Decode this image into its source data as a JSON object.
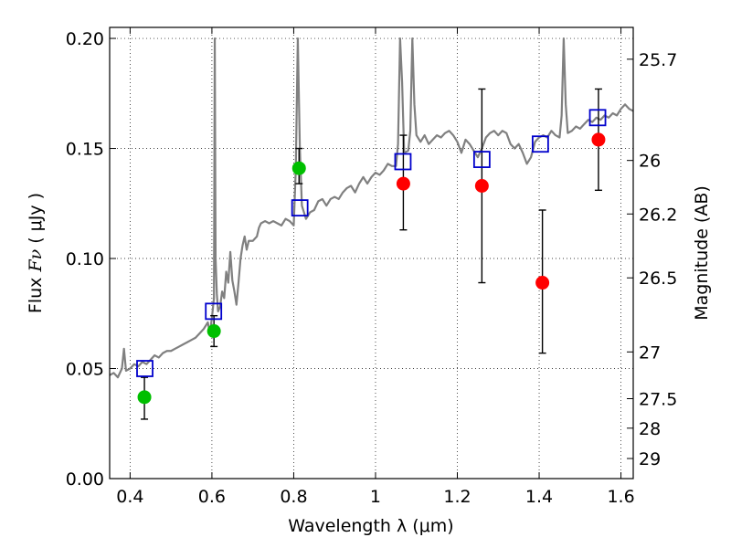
{
  "chart_data": {
    "type": "scatter",
    "xlabel": "Wavelength  λ (μm)",
    "ylabel": {
      "prefix": "Flux ",
      "symbol": "Fν",
      "unit": " ( μJy )"
    },
    "y2label": "Magnitude (AB)",
    "xlim": [
      0.35,
      1.63
    ],
    "ylim": [
      0.0,
      0.205
    ],
    "grid": true,
    "x_ticks": [
      {
        "value": 0.4,
        "label": "0.4"
      },
      {
        "value": 0.6,
        "label": "0.6"
      },
      {
        "value": 0.8,
        "label": "0.8"
      },
      {
        "value": 1.0,
        "label": "1"
      },
      {
        "value": 1.2,
        "label": "1.2"
      },
      {
        "value": 1.4,
        "label": "1.4"
      },
      {
        "value": 1.6,
        "label": "1.6"
      }
    ],
    "y_ticks": [
      {
        "value": 0.0,
        "label": "0.00"
      },
      {
        "value": 0.05,
        "label": "0.05"
      },
      {
        "value": 0.1,
        "label": "0.10"
      },
      {
        "value": 0.15,
        "label": "0.15"
      },
      {
        "value": 0.2,
        "label": "0.20"
      }
    ],
    "y2_ticks": [
      {
        "value": 25.7,
        "label": "25.7"
      },
      {
        "value": 26.0,
        "label": "26"
      },
      {
        "value": 26.2,
        "label": "26.2"
      },
      {
        "value": 26.5,
        "label": "26.5"
      },
      {
        "value": 27.0,
        "label": "27"
      },
      {
        "value": 27.5,
        "label": "27.5"
      },
      {
        "value": 28.0,
        "label": "28"
      },
      {
        "value": 29.0,
        "label": "29"
      }
    ],
    "series": [
      {
        "kind": "line",
        "color": "#808080",
        "points": [
          [
            0.35,
            0.047
          ],
          [
            0.36,
            0.048
          ],
          [
            0.37,
            0.046
          ],
          [
            0.38,
            0.05
          ],
          [
            0.385,
            0.059
          ],
          [
            0.39,
            0.049
          ],
          [
            0.4,
            0.05
          ],
          [
            0.41,
            0.052
          ],
          [
            0.42,
            0.051
          ],
          [
            0.43,
            0.053
          ],
          [
            0.44,
            0.052
          ],
          [
            0.45,
            0.054
          ],
          [
            0.46,
            0.056
          ],
          [
            0.47,
            0.055
          ],
          [
            0.48,
            0.057
          ],
          [
            0.49,
            0.058
          ],
          [
            0.5,
            0.058
          ],
          [
            0.51,
            0.059
          ],
          [
            0.52,
            0.06
          ],
          [
            0.53,
            0.061
          ],
          [
            0.54,
            0.062
          ],
          [
            0.55,
            0.063
          ],
          [
            0.56,
            0.064
          ],
          [
            0.57,
            0.066
          ],
          [
            0.58,
            0.068
          ],
          [
            0.59,
            0.071
          ],
          [
            0.595,
            0.066
          ],
          [
            0.6,
            0.073
          ],
          [
            0.605,
            0.082
          ],
          [
            0.607,
            0.2
          ],
          [
            0.609,
            0.1
          ],
          [
            0.612,
            0.084
          ],
          [
            0.615,
            0.076
          ],
          [
            0.62,
            0.078
          ],
          [
            0.625,
            0.085
          ],
          [
            0.63,
            0.082
          ],
          [
            0.635,
            0.094
          ],
          [
            0.64,
            0.089
          ],
          [
            0.645,
            0.103
          ],
          [
            0.65,
            0.09
          ],
          [
            0.655,
            0.085
          ],
          [
            0.66,
            0.079
          ],
          [
            0.665,
            0.089
          ],
          [
            0.67,
            0.1
          ],
          [
            0.675,
            0.106
          ],
          [
            0.68,
            0.11
          ],
          [
            0.685,
            0.104
          ],
          [
            0.69,
            0.108
          ],
          [
            0.7,
            0.108
          ],
          [
            0.71,
            0.11
          ],
          [
            0.715,
            0.114
          ],
          [
            0.72,
            0.116
          ],
          [
            0.73,
            0.117
          ],
          [
            0.74,
            0.116
          ],
          [
            0.75,
            0.117
          ],
          [
            0.76,
            0.116
          ],
          [
            0.77,
            0.115
          ],
          [
            0.78,
            0.118
          ],
          [
            0.79,
            0.117
          ],
          [
            0.8,
            0.115
          ],
          [
            0.805,
            0.14
          ],
          [
            0.81,
            0.2
          ],
          [
            0.815,
            0.15
          ],
          [
            0.82,
            0.124
          ],
          [
            0.83,
            0.118
          ],
          [
            0.84,
            0.121
          ],
          [
            0.85,
            0.122
          ],
          [
            0.86,
            0.126
          ],
          [
            0.87,
            0.127
          ],
          [
            0.88,
            0.124
          ],
          [
            0.89,
            0.127
          ],
          [
            0.9,
            0.128
          ],
          [
            0.91,
            0.127
          ],
          [
            0.92,
            0.13
          ],
          [
            0.93,
            0.132
          ],
          [
            0.94,
            0.133
          ],
          [
            0.95,
            0.13
          ],
          [
            0.96,
            0.134
          ],
          [
            0.97,
            0.137
          ],
          [
            0.98,
            0.134
          ],
          [
            0.99,
            0.137
          ],
          [
            1.0,
            0.139
          ],
          [
            1.01,
            0.138
          ],
          [
            1.02,
            0.14
          ],
          [
            1.03,
            0.143
          ],
          [
            1.04,
            0.142
          ],
          [
            1.05,
            0.142
          ],
          [
            1.055,
            0.152
          ],
          [
            1.06,
            0.2
          ],
          [
            1.065,
            0.18
          ],
          [
            1.07,
            0.148
          ],
          [
            1.08,
            0.149
          ],
          [
            1.085,
            0.158
          ],
          [
            1.09,
            0.2
          ],
          [
            1.095,
            0.17
          ],
          [
            1.1,
            0.156
          ],
          [
            1.11,
            0.153
          ],
          [
            1.12,
            0.156
          ],
          [
            1.13,
            0.152
          ],
          [
            1.14,
            0.154
          ],
          [
            1.15,
            0.156
          ],
          [
            1.16,
            0.155
          ],
          [
            1.17,
            0.157
          ],
          [
            1.18,
            0.158
          ],
          [
            1.19,
            0.156
          ],
          [
            1.2,
            0.153
          ],
          [
            1.21,
            0.148
          ],
          [
            1.22,
            0.154
          ],
          [
            1.23,
            0.152
          ],
          [
            1.24,
            0.149
          ],
          [
            1.25,
            0.146
          ],
          [
            1.26,
            0.15
          ],
          [
            1.27,
            0.155
          ],
          [
            1.28,
            0.157
          ],
          [
            1.29,
            0.158
          ],
          [
            1.3,
            0.156
          ],
          [
            1.31,
            0.158
          ],
          [
            1.32,
            0.157
          ],
          [
            1.33,
            0.152
          ],
          [
            1.34,
            0.15
          ],
          [
            1.35,
            0.152
          ],
          [
            1.36,
            0.148
          ],
          [
            1.37,
            0.143
          ],
          [
            1.38,
            0.146
          ],
          [
            1.39,
            0.153
          ],
          [
            1.4,
            0.155
          ],
          [
            1.41,
            0.156
          ],
          [
            1.42,
            0.155
          ],
          [
            1.43,
            0.158
          ],
          [
            1.44,
            0.156
          ],
          [
            1.45,
            0.155
          ],
          [
            1.455,
            0.165
          ],
          [
            1.46,
            0.2
          ],
          [
            1.465,
            0.17
          ],
          [
            1.47,
            0.157
          ],
          [
            1.48,
            0.158
          ],
          [
            1.49,
            0.16
          ],
          [
            1.5,
            0.159
          ],
          [
            1.51,
            0.161
          ],
          [
            1.52,
            0.163
          ],
          [
            1.53,
            0.162
          ],
          [
            1.54,
            0.164
          ],
          [
            1.55,
            0.163
          ],
          [
            1.56,
            0.165
          ],
          [
            1.57,
            0.164
          ],
          [
            1.58,
            0.166
          ],
          [
            1.59,
            0.165
          ],
          [
            1.6,
            0.168
          ],
          [
            1.61,
            0.17
          ],
          [
            1.62,
            0.168
          ],
          [
            1.63,
            0.167
          ]
        ]
      },
      {
        "kind": "scatter",
        "marker": "circle",
        "color": "#00bf00",
        "points": [
          {
            "x": 0.435,
            "y": 0.037,
            "err": [
              0.027,
              0.046
            ]
          },
          {
            "x": 0.605,
            "y": 0.067,
            "err": [
              0.06,
              0.074
            ]
          },
          {
            "x": 0.813,
            "y": 0.141,
            "err": [
              0.134,
              0.15
            ]
          }
        ]
      },
      {
        "kind": "scatter",
        "marker": "circle",
        "color": "#ff0000",
        "points": [
          {
            "x": 1.068,
            "y": 0.134,
            "err": [
              0.113,
              0.156
            ]
          },
          {
            "x": 1.26,
            "y": 0.133,
            "err": [
              0.089,
              0.177
            ]
          },
          {
            "x": 1.408,
            "y": 0.089,
            "err": [
              0.057,
              0.122
            ]
          },
          {
            "x": 1.545,
            "y": 0.154,
            "err": [
              0.131,
              0.177
            ]
          }
        ]
      },
      {
        "kind": "scatter",
        "marker": "square",
        "color": "#0000cc",
        "points": [
          {
            "x": 0.436,
            "y": 0.05
          },
          {
            "x": 0.604,
            "y": 0.076
          },
          {
            "x": 0.815,
            "y": 0.123
          },
          {
            "x": 1.067,
            "y": 0.144
          },
          {
            "x": 1.26,
            "y": 0.145
          },
          {
            "x": 1.403,
            "y": 0.152
          },
          {
            "x": 1.543,
            "y": 0.164
          }
        ]
      }
    ]
  }
}
